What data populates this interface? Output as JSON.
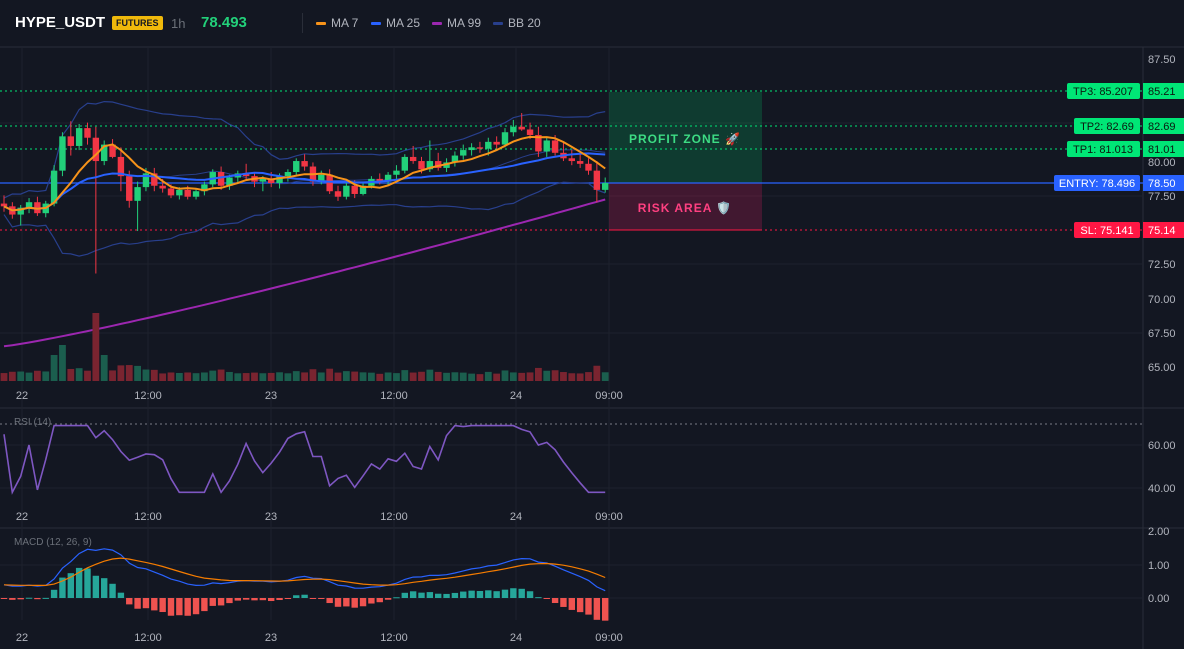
{
  "header": {
    "symbol": "HYPE_USDT",
    "market_badge": "FUTURES",
    "timeframe": "1h",
    "last_price": "78.493",
    "indicators": [
      {
        "label": "MA 7",
        "color": "#f7931a"
      },
      {
        "label": "MA 25",
        "color": "#2962ff"
      },
      {
        "label": "MA 99",
        "color": "#9c27b0"
      },
      {
        "label": "BB 20",
        "color": "#283f8c"
      }
    ]
  },
  "colors": {
    "up": "#22d07a",
    "down": "#f23645",
    "tp": "#00e676",
    "entry": "#2962ff",
    "sl": "#ff1744"
  },
  "price_axis": {
    "labels": [
      "87.50",
      "82.50",
      "80.00",
      "77.50",
      "72.50",
      "70.00",
      "67.50",
      "65.00"
    ]
  },
  "levels": [
    {
      "tag": "TP3: 85.207",
      "axis": "85.21",
      "kind": "tp"
    },
    {
      "tag": "TP2: 82.69",
      "axis": "82.69",
      "kind": "tp"
    },
    {
      "tag": "TP1: 81.013",
      "axis": "81.01",
      "kind": "tp"
    },
    {
      "tag": "ENTRY: 78.496",
      "axis": "78.50",
      "kind": "entry"
    },
    {
      "tag": "SL: 75.141",
      "axis": "75.14",
      "kind": "sl"
    }
  ],
  "zones": {
    "profit": "PROFIT ZONE 🚀",
    "risk": "RISK AREA 🛡️"
  },
  "time_axis": [
    "22",
    "12:00",
    "23",
    "12:00",
    "24",
    "09:00"
  ],
  "rsi": {
    "label": "RSI (14)",
    "axis": [
      "60.00",
      "40.00"
    ]
  },
  "macd": {
    "label": "MACD (12, 26, 9)",
    "axis": [
      "2.00",
      "1.00",
      "0.00"
    ]
  },
  "chart_data": {
    "type": "candlestick",
    "interval": "1h",
    "candles": [
      [
        77.0,
        77.6,
        76.4,
        76.8
      ],
      [
        76.8,
        77.1,
        75.9,
        76.2
      ],
      [
        76.2,
        76.9,
        75.4,
        76.7
      ],
      [
        76.7,
        77.4,
        76.3,
        77.1
      ],
      [
        77.1,
        77.5,
        76.1,
        76.3
      ],
      [
        76.3,
        77.2,
        76.0,
        77.0
      ],
      [
        77.0,
        79.8,
        76.8,
        79.4
      ],
      [
        79.4,
        82.2,
        79.0,
        81.9
      ],
      [
        81.9,
        83.0,
        80.5,
        81.2
      ],
      [
        81.2,
        82.8,
        80.9,
        82.5
      ],
      [
        82.5,
        82.9,
        81.3,
        81.8
      ],
      [
        81.8,
        82.6,
        71.9,
        80.1
      ],
      [
        80.1,
        81.6,
        79.8,
        81.3
      ],
      [
        81.3,
        81.7,
        80.3,
        80.4
      ],
      [
        80.4,
        81.1,
        77.9,
        79.0
      ],
      [
        79.0,
        79.4,
        76.7,
        77.2
      ],
      [
        77.2,
        78.6,
        75.0,
        78.2
      ],
      [
        78.2,
        79.6,
        77.9,
        79.2
      ],
      [
        79.2,
        79.6,
        77.9,
        78.3
      ],
      [
        78.3,
        78.8,
        77.8,
        78.1
      ],
      [
        78.1,
        78.4,
        77.4,
        77.6
      ],
      [
        77.6,
        78.2,
        77.3,
        78.0
      ],
      [
        78.0,
        78.3,
        77.3,
        77.5
      ],
      [
        77.5,
        78.1,
        77.3,
        77.9
      ],
      [
        77.9,
        78.6,
        77.6,
        78.4
      ],
      [
        78.4,
        79.5,
        78.2,
        79.3
      ],
      [
        79.3,
        79.7,
        78.0,
        78.3
      ],
      [
        78.3,
        79.1,
        78.0,
        78.9
      ],
      [
        78.9,
        79.4,
        78.5,
        79.2
      ],
      [
        79.2,
        79.9,
        78.7,
        79.0
      ],
      [
        79.0,
        79.3,
        78.2,
        78.6
      ],
      [
        78.6,
        79.0,
        77.9,
        78.8
      ],
      [
        78.8,
        79.3,
        78.2,
        78.5
      ],
      [
        78.5,
        79.2,
        78.1,
        79.0
      ],
      [
        79.0,
        79.5,
        78.6,
        79.3
      ],
      [
        79.3,
        80.3,
        79.1,
        80.1
      ],
      [
        80.1,
        80.6,
        79.4,
        79.7
      ],
      [
        79.7,
        80.0,
        78.3,
        78.6
      ],
      [
        78.6,
        79.4,
        78.4,
        79.1
      ],
      [
        79.1,
        79.5,
        77.7,
        77.9
      ],
      [
        77.9,
        78.3,
        77.2,
        77.5
      ],
      [
        77.5,
        78.5,
        77.3,
        78.3
      ],
      [
        78.3,
        78.7,
        77.4,
        77.7
      ],
      [
        77.7,
        78.5,
        77.6,
        78.3
      ],
      [
        78.3,
        79.0,
        78.1,
        78.8
      ],
      [
        78.8,
        79.2,
        78.4,
        78.6
      ],
      [
        78.6,
        79.3,
        78.3,
        79.1
      ],
      [
        79.1,
        79.8,
        78.8,
        79.4
      ],
      [
        79.4,
        80.6,
        79.2,
        80.4
      ],
      [
        80.4,
        81.2,
        79.9,
        80.1
      ],
      [
        80.1,
        80.4,
        79.2,
        79.5
      ],
      [
        79.5,
        81.6,
        79.3,
        80.1
      ],
      [
        80.1,
        80.7,
        79.4,
        79.6
      ],
      [
        79.6,
        80.3,
        79.3,
        80.0
      ],
      [
        80.0,
        80.8,
        79.7,
        80.5
      ],
      [
        80.5,
        81.3,
        80.2,
        80.9
      ],
      [
        80.9,
        81.4,
        80.5,
        81.1
      ],
      [
        81.1,
        81.5,
        80.7,
        81.0
      ],
      [
        81.0,
        81.8,
        80.5,
        81.5
      ],
      [
        81.5,
        81.9,
        81.0,
        81.3
      ],
      [
        81.3,
        82.5,
        81.1,
        82.2
      ],
      [
        82.2,
        83.1,
        81.9,
        82.6
      ],
      [
        82.6,
        83.6,
        82.3,
        82.4
      ],
      [
        82.4,
        82.9,
        81.7,
        82.0
      ],
      [
        82.0,
        82.6,
        80.4,
        80.8
      ],
      [
        80.8,
        81.8,
        80.4,
        81.6
      ],
      [
        81.6,
        82.0,
        80.5,
        80.7
      ],
      [
        80.7,
        81.5,
        80.1,
        80.3
      ],
      [
        80.3,
        80.9,
        79.8,
        80.1
      ],
      [
        80.1,
        80.6,
        79.6,
        79.9
      ],
      [
        79.9,
        80.3,
        79.1,
        79.4
      ],
      [
        79.4,
        80.1,
        77.1,
        78.0
      ],
      [
        78.0,
        78.9,
        77.8,
        78.5
      ]
    ],
    "volume_max_index": 11,
    "levels": {
      "tp3": 85.207,
      "tp2": 82.69,
      "tp1": 81.013,
      "entry": 78.496,
      "sl": 75.141
    },
    "rsi_range": [
      30,
      70
    ],
    "macd_range": [
      -0.5,
      2.0
    ]
  }
}
